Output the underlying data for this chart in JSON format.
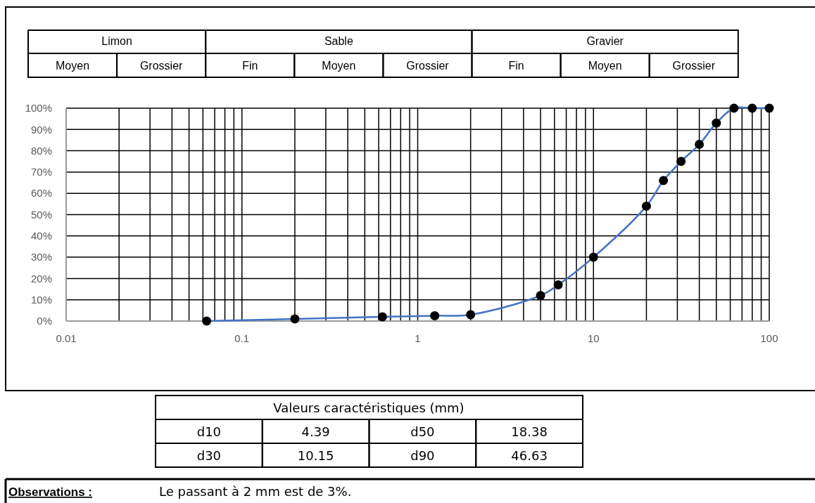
{
  "chart_data": {
    "type": "line",
    "x": [
      0.063,
      0.2,
      0.63,
      1.25,
      2,
      5,
      6.3,
      10,
      20,
      25,
      31.5,
      40,
      50,
      63,
      80,
      100
    ],
    "series": [
      {
        "color": "#4472c4",
        "values": [
          0,
          1,
          2,
          2.5,
          3,
          12,
          17,
          30,
          54,
          66,
          75,
          83,
          93,
          100,
          100,
          100
        ]
      }
    ],
    "log": "x",
    "marker": "circle",
    "grid": true,
    "xlim": [
      0.01,
      100
    ],
    "xticks": [
      0.01,
      {
        "value": 0.02,
        "label": null
      },
      {
        "value": 0.03,
        "label": null
      },
      {
        "value": 0.04,
        "label": null
      },
      {
        "value": 0.05,
        "label": null
      },
      {
        "value": 0.06,
        "label": null
      },
      {
        "value": 0.07,
        "label": null
      },
      {
        "value": 0.08,
        "label": null
      },
      {
        "value": 0.09,
        "label": null
      },
      0.1,
      {
        "value": 0.2,
        "label": null
      },
      {
        "value": 0.3,
        "label": null
      },
      {
        "value": 0.4,
        "label": null
      },
      {
        "value": 0.5,
        "label": null
      },
      {
        "value": 0.6,
        "label": null
      },
      {
        "value": 0.7,
        "label": null
      },
      {
        "value": 0.8,
        "label": null
      },
      {
        "value": 0.9,
        "label": null
      },
      1,
      {
        "value": 2,
        "label": null
      },
      {
        "value": 3,
        "label": null
      },
      {
        "value": 4,
        "label": null
      },
      {
        "value": 5,
        "label": null
      },
      {
        "value": 6,
        "label": null
      },
      {
        "value": 7,
        "label": null
      },
      {
        "value": 8,
        "label": null
      },
      {
        "value": 9,
        "label": null
      },
      10,
      {
        "value": 20,
        "label": null
      },
      {
        "value": 30,
        "label": null
      },
      {
        "value": 40,
        "label": null
      },
      {
        "value": 50,
        "label": null
      },
      {
        "value": 60,
        "label": null
      },
      {
        "value": 70,
        "label": null
      },
      {
        "value": 80,
        "label": null
      },
      {
        "value": 90,
        "label": null
      },
      100
    ],
    "ylim": [
      0,
      100
    ],
    "yticks": [
      {
        "value": 0,
        "label": "0%"
      },
      {
        "value": 10,
        "label": "10%"
      },
      {
        "value": 20,
        "label": "20%"
      },
      {
        "value": 30,
        "label": "30%"
      },
      {
        "value": 40,
        "label": "40%"
      },
      {
        "value": 50,
        "label": "50%"
      },
      {
        "value": 60,
        "label": "60%"
      },
      {
        "value": 70,
        "label": "70%"
      },
      {
        "value": 80,
        "label": "80%"
      },
      {
        "value": 90,
        "label": "90%"
      },
      {
        "value": 100,
        "label": "100%"
      }
    ],
    "annotations": [
      "Limon",
      "Sable",
      "Gravier",
      "Moyen",
      "Grossier",
      "Fin",
      "Moyen",
      "Grossier",
      "Fin",
      "Moyen",
      "Grossier",
      "Valeurs caractéristiques (mm)",
      "d10",
      "4.39",
      "d50",
      "18.38",
      "d30",
      "10.15",
      "d90",
      "46.63",
      "Observations :",
      "Le passant à 2 mm est de 3%."
    ]
  }
}
